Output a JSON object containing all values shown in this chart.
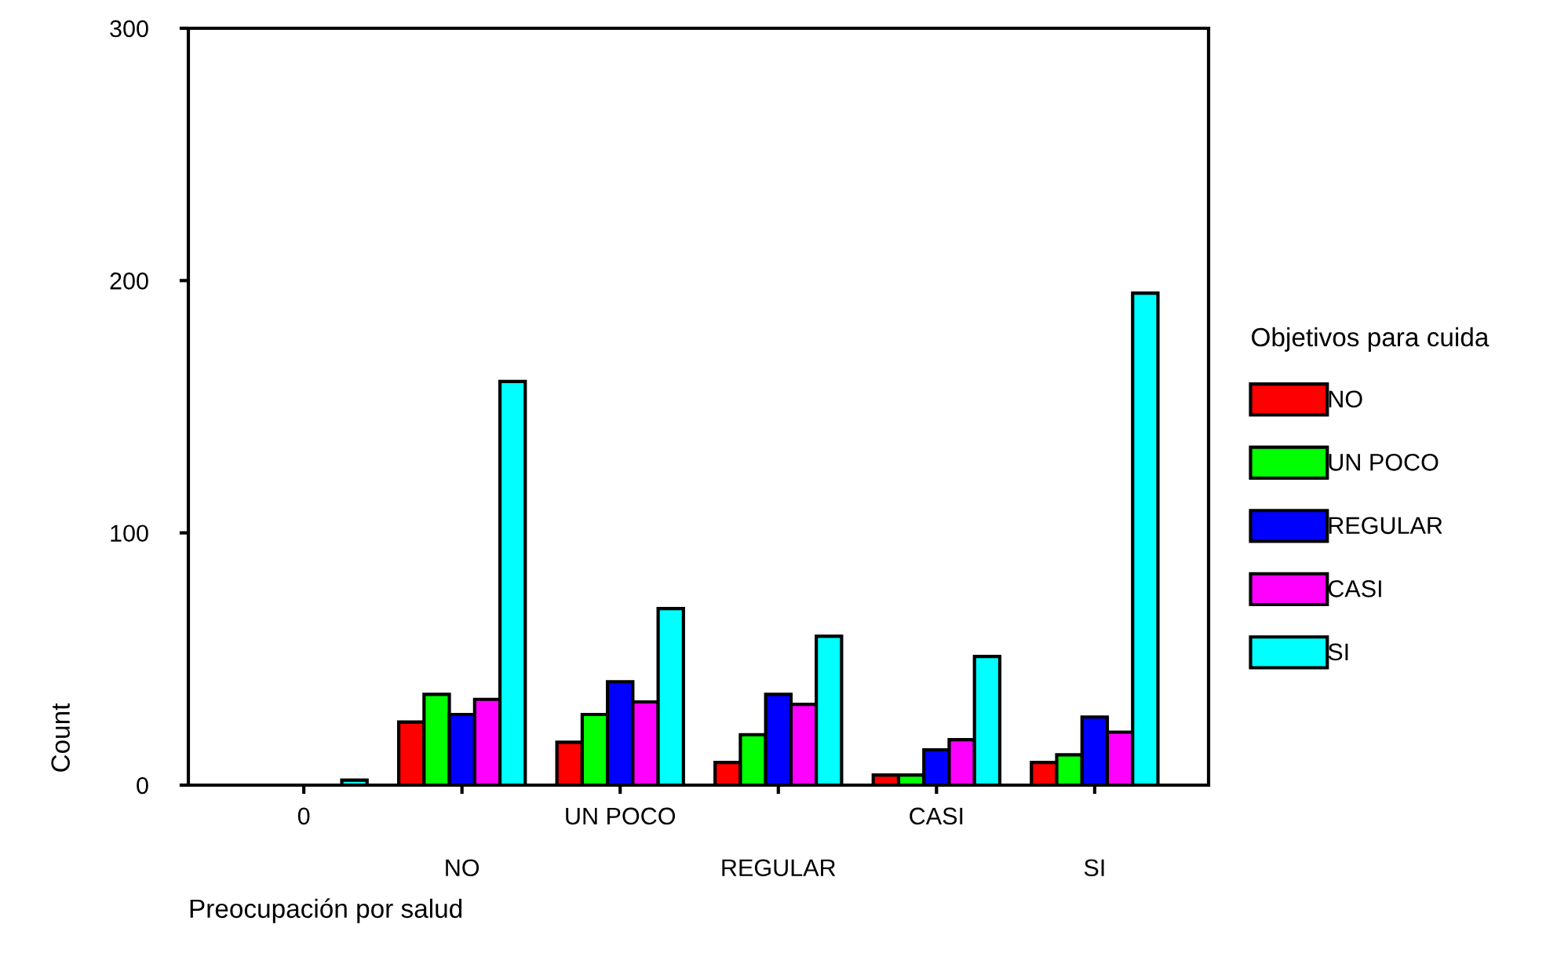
{
  "chart_data": {
    "type": "bar",
    "xlabel": "Preocupación por salud",
    "ylabel": "Count",
    "legend_title": "Objetivos para cuida",
    "categories": [
      "0",
      "NO",
      "UN POCO",
      "REGULAR",
      "CASI",
      "SI"
    ],
    "series": [
      {
        "name": "NO",
        "color": "#ff0000",
        "values": [
          0,
          25,
          17,
          9,
          4,
          9
        ]
      },
      {
        "name": "UN POCO",
        "color": "#00ff00",
        "values": [
          0,
          36,
          28,
          20,
          4,
          12
        ]
      },
      {
        "name": "REGULAR",
        "color": "#0000ff",
        "values": [
          0,
          28,
          41,
          36,
          14,
          27
        ]
      },
      {
        "name": "CASI",
        "color": "#ff00ff",
        "values": [
          0,
          34,
          33,
          32,
          18,
          21
        ]
      },
      {
        "name": "SI",
        "color": "#00ffff",
        "values": [
          2,
          160,
          70,
          59,
          51,
          195
        ]
      }
    ],
    "ylim": [
      0,
      300
    ],
    "yticks": [
      0,
      100,
      200,
      300
    ],
    "grid": false,
    "legend": "right"
  }
}
